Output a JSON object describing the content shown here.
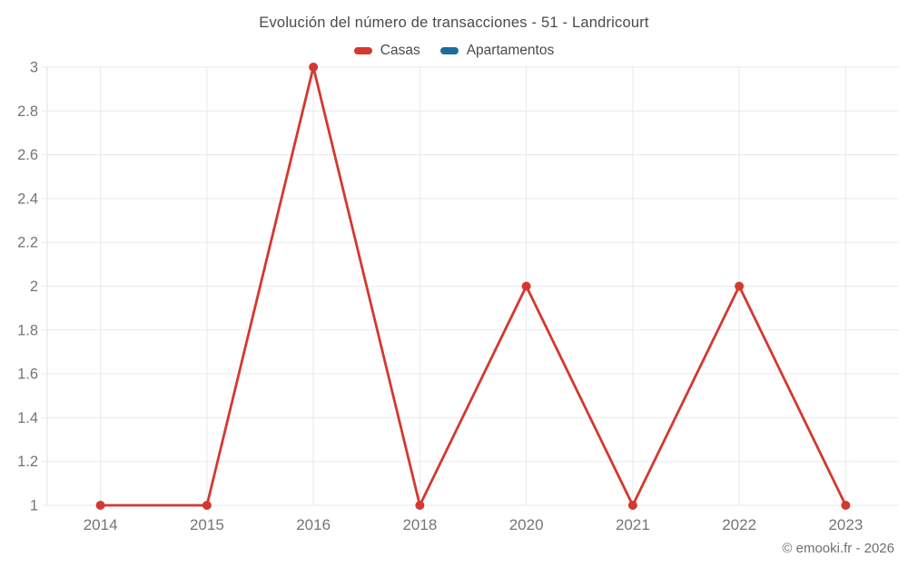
{
  "title": "Evolución del número de transacciones - 51 - Landricourt",
  "legend": [
    {
      "label": "Casas",
      "color": "#d4382f"
    },
    {
      "label": "Apartamentos",
      "color": "#1c6d9c"
    }
  ],
  "footer": {
    "copyright": "© emooki.fr - 2026"
  },
  "chart_data": {
    "type": "line",
    "title": "Evolución del número de transacciones - 51 - Landricourt",
    "categories": [
      "2014",
      "2015",
      "2016",
      "2018",
      "2020",
      "2021",
      "2022",
      "2023"
    ],
    "series": [
      {
        "name": "Casas",
        "color": "#d4382f",
        "values": [
          1,
          1,
          3,
          1,
          2,
          1,
          2,
          1
        ]
      },
      {
        "name": "Apartamentos",
        "color": "#1c6d9c",
        "values": []
      }
    ],
    "xlabel": "",
    "ylabel": "",
    "ylim": [
      1,
      3
    ],
    "ytick_step": 0.2,
    "grid": true,
    "legend_position": "top",
    "colors": {
      "grid_line": "#e9e9e9",
      "axis_border": "#e2e2e2",
      "tick_label": "#757575"
    }
  }
}
